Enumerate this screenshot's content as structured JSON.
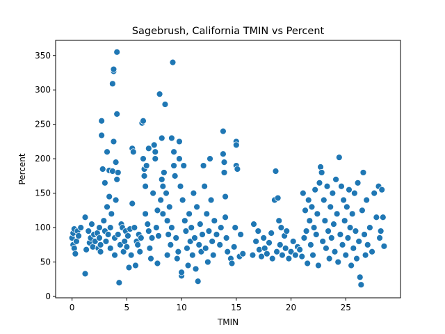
{
  "chart_data": {
    "type": "scatter",
    "title": "Sagebrush, California TMIN vs Percent",
    "xlabel": "TMIN",
    "ylabel": "Percent",
    "xlim": [
      -1.5,
      30.0
    ],
    "ylim": [
      -2,
      372
    ],
    "xticks": [
      0,
      5,
      10,
      15,
      20,
      25
    ],
    "yticks": [
      0,
      50,
      100,
      150,
      200,
      250,
      300,
      350
    ],
    "grid": false,
    "legend": "none",
    "marker_color": "#1f77b4",
    "marker_edge": "#ffffff",
    "points": [
      [
        0.0,
        85
      ],
      [
        0.1,
        92
      ],
      [
        0.1,
        75
      ],
      [
        0.2,
        70
      ],
      [
        0.2,
        98
      ],
      [
        0.3,
        62
      ],
      [
        0.4,
        80
      ],
      [
        0.5,
        95
      ],
      [
        0.6,
        88
      ],
      [
        0.8,
        100
      ],
      [
        1.2,
        33
      ],
      [
        1.2,
        115
      ],
      [
        1.3,
        68
      ],
      [
        1.5,
        95
      ],
      [
        1.6,
        78
      ],
      [
        1.7,
        85
      ],
      [
        1.8,
        105
      ],
      [
        1.9,
        72
      ],
      [
        2.0,
        90
      ],
      [
        2.1,
        80
      ],
      [
        2.3,
        92
      ],
      [
        2.4,
        70
      ],
      [
        2.5,
        100
      ],
      [
        2.5,
        85
      ],
      [
        2.6,
        65
      ],
      [
        2.6,
        75
      ],
      [
        2.7,
        255
      ],
      [
        2.7,
        234
      ],
      [
        2.8,
        185
      ],
      [
        2.9,
        110
      ],
      [
        3.0,
        95
      ],
      [
        3.0,
        165
      ],
      [
        3.1,
        80
      ],
      [
        3.2,
        130
      ],
      [
        3.2,
        210
      ],
      [
        3.3,
        90
      ],
      [
        3.4,
        145
      ],
      [
        3.4,
        183
      ],
      [
        3.5,
        70
      ],
      [
        3.5,
        100
      ],
      [
        3.6,
        120
      ],
      [
        3.7,
        309
      ],
      [
        3.7,
        182
      ],
      [
        3.8,
        327
      ],
      [
        3.8,
        330
      ],
      [
        3.8,
        225
      ],
      [
        3.9,
        85
      ],
      [
        3.9,
        60
      ],
      [
        4.0,
        140
      ],
      [
        4.0,
        195
      ],
      [
        4.1,
        355
      ],
      [
        4.1,
        265
      ],
      [
        4.1,
        170
      ],
      [
        4.2,
        180
      ],
      [
        4.2,
        90
      ],
      [
        4.3,
        20
      ],
      [
        4.4,
        75
      ],
      [
        4.5,
        105
      ],
      [
        4.6,
        100
      ],
      [
        4.7,
        65
      ],
      [
        4.8,
        80
      ],
      [
        4.9,
        95
      ],
      [
        5.0,
        72
      ],
      [
        5.1,
        88
      ],
      [
        5.2,
        42
      ],
      [
        5.3,
        98
      ],
      [
        5.4,
        60
      ],
      [
        5.5,
        135
      ],
      [
        5.5,
        215
      ],
      [
        5.6,
        210
      ],
      [
        5.7,
        100
      ],
      [
        5.8,
        45
      ],
      [
        5.9,
        80
      ],
      [
        6.0,
        75
      ],
      [
        6.1,
        90
      ],
      [
        6.2,
        65
      ],
      [
        6.3,
        85
      ],
      [
        6.4,
        252
      ],
      [
        6.5,
        255
      ],
      [
        6.5,
        200
      ],
      [
        6.6,
        185
      ],
      [
        6.6,
        175
      ],
      [
        6.7,
        120
      ],
      [
        6.7,
        160
      ],
      [
        6.8,
        190
      ],
      [
        6.9,
        105
      ],
      [
        7.0,
        95
      ],
      [
        7.0,
        215
      ],
      [
        7.1,
        70
      ],
      [
        7.2,
        55
      ],
      [
        7.3,
        85
      ],
      [
        7.4,
        150
      ],
      [
        7.5,
        220
      ],
      [
        7.6,
        200
      ],
      [
        7.6,
        210
      ],
      [
        7.7,
        100
      ],
      [
        7.8,
        125
      ],
      [
        7.8,
        48
      ],
      [
        7.9,
        88
      ],
      [
        8.0,
        294
      ],
      [
        8.1,
        140
      ],
      [
        8.2,
        170
      ],
      [
        8.2,
        230
      ],
      [
        8.3,
        160
      ],
      [
        8.3,
        120
      ],
      [
        8.4,
        180
      ],
      [
        8.5,
        279
      ],
      [
        8.6,
        150
      ],
      [
        8.7,
        110
      ],
      [
        8.7,
        60
      ],
      [
        8.8,
        90
      ],
      [
        8.9,
        130
      ],
      [
        9.0,
        75
      ],
      [
        9.1,
        100
      ],
      [
        9.1,
        230
      ],
      [
        9.2,
        340
      ],
      [
        9.3,
        210
      ],
      [
        9.3,
        190
      ],
      [
        9.4,
        175
      ],
      [
        9.5,
        85
      ],
      [
        9.6,
        55
      ],
      [
        9.7,
        65
      ],
      [
        9.8,
        225
      ],
      [
        9.8,
        200
      ],
      [
        9.9,
        160
      ],
      [
        10.0,
        30
      ],
      [
        10.0,
        35
      ],
      [
        10.1,
        140
      ],
      [
        10.2,
        190
      ],
      [
        10.3,
        110
      ],
      [
        10.4,
        95
      ],
      [
        10.5,
        70
      ],
      [
        10.6,
        45
      ],
      [
        10.7,
        120
      ],
      [
        10.8,
        80
      ],
      [
        10.9,
        100
      ],
      [
        11.0,
        60
      ],
      [
        11.1,
        150
      ],
      [
        11.2,
        85
      ],
      [
        11.3,
        40
      ],
      [
        11.4,
        130
      ],
      [
        11.5,
        22
      ],
      [
        11.6,
        75
      ],
      [
        11.7,
        105
      ],
      [
        11.8,
        65
      ],
      [
        11.9,
        90
      ],
      [
        12.0,
        190
      ],
      [
        12.1,
        160
      ],
      [
        12.2,
        70
      ],
      [
        12.3,
        120
      ],
      [
        12.4,
        50
      ],
      [
        12.5,
        95
      ],
      [
        12.6,
        200
      ],
      [
        12.7,
        140
      ],
      [
        12.8,
        80
      ],
      [
        12.9,
        60
      ],
      [
        13.0,
        110
      ],
      [
        13.2,
        90
      ],
      [
        13.5,
        75
      ],
      [
        13.6,
        100
      ],
      [
        13.8,
        240
      ],
      [
        13.8,
        207
      ],
      [
        13.9,
        195
      ],
      [
        13.9,
        180
      ],
      [
        14.0,
        145
      ],
      [
        14.0,
        115
      ],
      [
        14.1,
        85
      ],
      [
        14.2,
        65
      ],
      [
        14.5,
        55
      ],
      [
        14.6,
        48
      ],
      [
        14.8,
        72
      ],
      [
        14.9,
        100
      ],
      [
        15.0,
        225
      ],
      [
        15.0,
        220
      ],
      [
        15.0,
        190
      ],
      [
        15.1,
        185
      ],
      [
        15.3,
        58
      ],
      [
        15.4,
        90
      ],
      [
        15.6,
        62
      ],
      [
        16.5,
        60
      ],
      [
        16.6,
        105
      ],
      [
        16.8,
        80
      ],
      [
        17.0,
        95
      ],
      [
        17.1,
        68
      ],
      [
        17.3,
        58
      ],
      [
        17.5,
        85
      ],
      [
        17.6,
        70
      ],
      [
        17.8,
        62
      ],
      [
        18.0,
        78
      ],
      [
        18.2,
        92
      ],
      [
        18.3,
        55
      ],
      [
        18.5,
        140
      ],
      [
        18.6,
        182
      ],
      [
        18.7,
        65
      ],
      [
        18.8,
        143
      ],
      [
        18.9,
        110
      ],
      [
        19.0,
        75
      ],
      [
        19.1,
        100
      ],
      [
        19.2,
        60
      ],
      [
        19.4,
        88
      ],
      [
        19.5,
        70
      ],
      [
        19.6,
        95
      ],
      [
        19.8,
        55
      ],
      [
        20.0,
        65
      ],
      [
        20.2,
        80
      ],
      [
        20.4,
        60
      ],
      [
        20.6,
        72
      ],
      [
        20.8,
        68
      ],
      [
        21.0,
        58
      ],
      [
        21.1,
        150
      ],
      [
        21.2,
        85
      ],
      [
        21.3,
        125
      ],
      [
        21.4,
        95
      ],
      [
        21.5,
        48
      ],
      [
        21.6,
        140
      ],
      [
        21.7,
        110
      ],
      [
        21.8,
        75
      ],
      [
        21.9,
        130
      ],
      [
        22.0,
        60
      ],
      [
        22.1,
        100
      ],
      [
        22.2,
        155
      ],
      [
        22.3,
        90
      ],
      [
        22.4,
        120
      ],
      [
        22.5,
        45
      ],
      [
        22.6,
        165
      ],
      [
        22.7,
        188
      ],
      [
        22.8,
        180
      ],
      [
        22.9,
        80
      ],
      [
        23.0,
        140
      ],
      [
        23.1,
        110
      ],
      [
        23.2,
        70
      ],
      [
        23.3,
        160
      ],
      [
        23.4,
        95
      ],
      [
        23.5,
        55
      ],
      [
        23.6,
        130
      ],
      [
        23.7,
        85
      ],
      [
        23.8,
        150
      ],
      [
        23.9,
        105
      ],
      [
        24.0,
        65
      ],
      [
        24.1,
        170
      ],
      [
        24.2,
        120
      ],
      [
        24.3,
        50
      ],
      [
        24.4,
        202
      ],
      [
        24.5,
        90
      ],
      [
        24.6,
        160
      ],
      [
        24.7,
        75
      ],
      [
        24.8,
        140
      ],
      [
        24.9,
        110
      ],
      [
        25.0,
        60
      ],
      [
        25.1,
        130
      ],
      [
        25.2,
        85
      ],
      [
        25.3,
        155
      ],
      [
        25.4,
        100
      ],
      [
        25.5,
        45
      ],
      [
        25.6,
        120
      ],
      [
        25.7,
        70
      ],
      [
        25.8,
        150
      ],
      [
        25.9,
        95
      ],
      [
        26.0,
        55
      ],
      [
        26.1,
        165
      ],
      [
        26.2,
        80
      ],
      [
        26.3,
        28
      ],
      [
        26.4,
        17
      ],
      [
        26.5,
        125
      ],
      [
        26.6,
        180
      ],
      [
        26.7,
        90
      ],
      [
        26.8,
        60
      ],
      [
        26.9,
        140
      ],
      [
        27.0,
        75
      ],
      [
        27.2,
        100
      ],
      [
        27.4,
        65
      ],
      [
        27.6,
        150
      ],
      [
        27.8,
        115
      ],
      [
        28.0,
        160
      ],
      [
        28.1,
        85
      ],
      [
        28.2,
        95
      ],
      [
        28.3,
        155
      ],
      [
        28.4,
        115
      ],
      [
        28.5,
        73
      ]
    ]
  }
}
